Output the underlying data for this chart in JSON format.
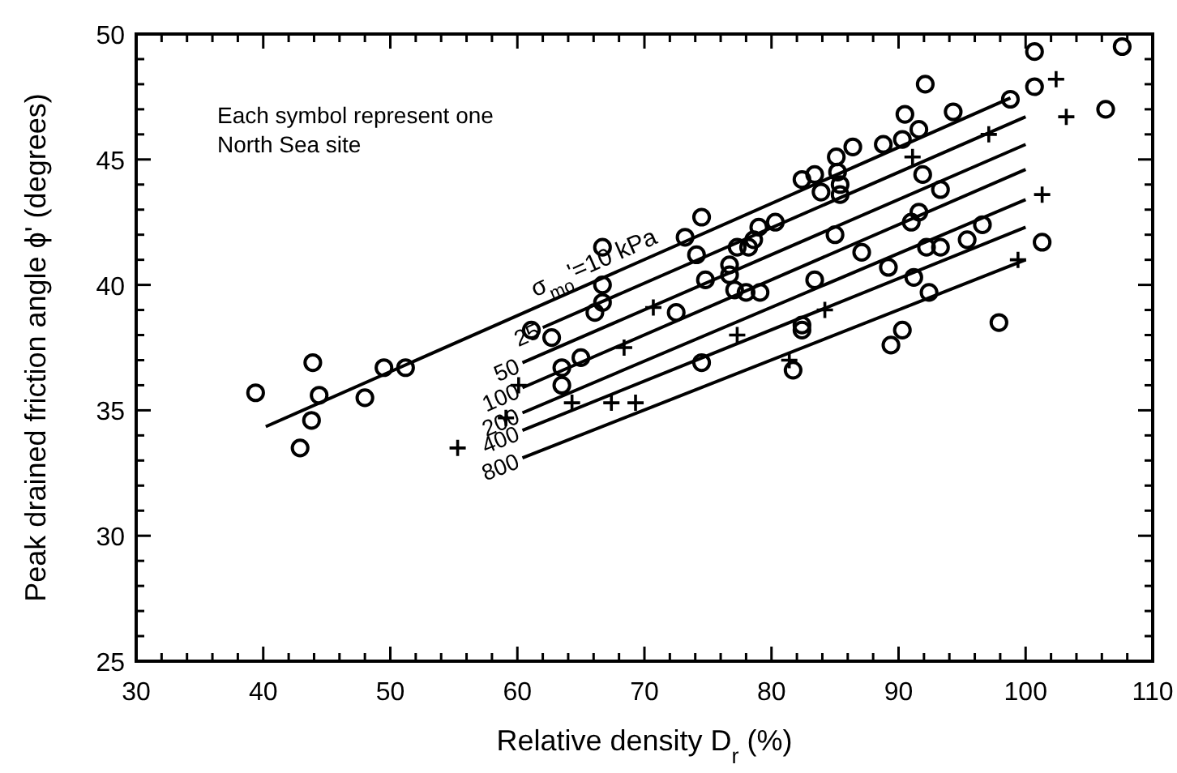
{
  "chart_data": {
    "type": "scatter",
    "xlabel": "Relative density D$_{r}$ (%)",
    "ylabel": "Peak drained friction angle ϕ' (degrees)",
    "xlim": [
      30,
      110
    ],
    "ylim": [
      25,
      50
    ],
    "xticks": [
      30,
      {
        "value": 32,
        "label": null
      },
      {
        "value": 34,
        "label": null
      },
      {
        "value": 36,
        "label": null
      },
      {
        "value": 38,
        "label": null
      },
      40,
      {
        "value": 42,
        "label": null
      },
      {
        "value": 44,
        "label": null
      },
      {
        "value": 46,
        "label": null
      },
      {
        "value": 48,
        "label": null
      },
      50,
      {
        "value": 52,
        "label": null
      },
      {
        "value": 54,
        "label": null
      },
      {
        "value": 56,
        "label": null
      },
      {
        "value": 58,
        "label": null
      },
      60,
      {
        "value": 62,
        "label": null
      },
      {
        "value": 64,
        "label": null
      },
      {
        "value": 66,
        "label": null
      },
      {
        "value": 68,
        "label": null
      },
      70,
      {
        "value": 72,
        "label": null
      },
      {
        "value": 74,
        "label": null
      },
      {
        "value": 76,
        "label": null
      },
      {
        "value": 78,
        "label": null
      },
      80,
      {
        "value": 82,
        "label": null
      },
      {
        "value": 84,
        "label": null
      },
      {
        "value": 86,
        "label": null
      },
      {
        "value": 88,
        "label": null
      },
      90,
      {
        "value": 92,
        "label": null
      },
      {
        "value": 94,
        "label": null
      },
      {
        "value": 96,
        "label": null
      },
      {
        "value": 98,
        "label": null
      },
      100,
      {
        "value": 102,
        "label": null
      },
      {
        "value": 104,
        "label": null
      },
      {
        "value": 106,
        "label": null
      },
      {
        "value": 108,
        "label": null
      },
      110
    ],
    "yticks": [
      25,
      {
        "value": 26,
        "label": null
      },
      {
        "value": 27,
        "label": null
      },
      {
        "value": 28,
        "label": null
      },
      {
        "value": 29,
        "label": null
      },
      30,
      {
        "value": 31,
        "label": null
      },
      {
        "value": 32,
        "label": null
      },
      {
        "value": 33,
        "label": null
      },
      {
        "value": 34,
        "label": null
      },
      35,
      {
        "value": 36,
        "label": null
      },
      {
        "value": 37,
        "label": null
      },
      {
        "value": 38,
        "label": null
      },
      {
        "value": 39,
        "label": null
      },
      40,
      {
        "value": 41,
        "label": null
      },
      {
        "value": 42,
        "label": null
      },
      {
        "value": 43,
        "label": null
      },
      {
        "value": 44,
        "label": null
      },
      45,
      {
        "value": 46,
        "label": null
      },
      {
        "value": 47,
        "label": null
      },
      {
        "value": 48,
        "label": null
      },
      {
        "value": 49,
        "label": null
      },
      50
    ],
    "grid": false,
    "annotations": [
      "Each symbol represent one\nNorth Sea site"
    ],
    "series": [
      {
        "marker": "circle",
        "color": "#000000",
        "x": [
          39.4,
          42.9,
          43.8,
          43.9,
          44.4,
          48.0,
          49.5,
          51.2,
          61.1,
          62.7,
          63.5,
          63.5,
          65.0,
          66.1,
          66.7,
          66.7,
          66.7,
          72.5,
          73.2,
          74.1,
          74.5,
          74.5,
          74.8,
          76.7,
          76.7,
          77.1,
          77.3,
          78.0,
          78.2,
          78.6,
          79.0,
          79.1,
          80.3,
          81.7,
          82.4,
          82.4,
          82.4,
          83.4,
          83.4,
          83.9,
          85.0,
          85.1,
          85.2,
          85.4,
          85.4,
          86.4,
          87.1,
          88.8,
          89.2,
          89.4,
          90.3,
          90.3,
          90.5,
          91.0,
          91.2,
          91.6,
          91.6,
          91.9,
          92.1,
          92.2,
          92.4,
          93.3,
          93.3,
          94.3,
          95.4,
          96.6,
          97.9,
          98.8,
          100.7,
          100.7,
          101.3,
          106.3,
          107.6
        ],
        "values": [
          35.7,
          33.5,
          34.6,
          36.9,
          35.6,
          35.5,
          36.7,
          36.7,
          38.2,
          37.9,
          36.7,
          36.0,
          37.1,
          38.9,
          39.3,
          40.0,
          41.5,
          38.9,
          41.9,
          41.2,
          42.7,
          36.9,
          40.2,
          40.8,
          40.4,
          39.8,
          41.5,
          39.7,
          41.5,
          41.8,
          42.3,
          39.7,
          42.5,
          36.6,
          38.4,
          38.2,
          44.2,
          44.4,
          40.2,
          43.7,
          42.0,
          45.1,
          44.5,
          44.0,
          43.6,
          45.5,
          41.3,
          45.6,
          40.7,
          37.6,
          45.8,
          38.2,
          46.8,
          42.5,
          40.3,
          46.2,
          42.9,
          44.4,
          48.0,
          41.5,
          39.7,
          43.8,
          41.5,
          46.9,
          41.8,
          42.4,
          38.5,
          47.4,
          47.9,
          49.3,
          41.7,
          47.0,
          49.5
        ]
      },
      {
        "marker": "cross",
        "color": "#000000",
        "x": [
          55.3,
          59.1,
          60.1,
          64.3,
          67.4,
          68.4,
          69.3,
          70.7,
          77.3,
          81.4,
          84.2,
          91.1,
          97.1,
          99.4,
          101.3,
          102.4,
          103.2
        ],
        "values": [
          33.5,
          34.7,
          36.0,
          35.3,
          35.3,
          37.5,
          35.3,
          39.1,
          38.0,
          37.0,
          39.0,
          45.1,
          46.0,
          41.0,
          43.6,
          48.2,
          46.7
        ]
      },
      {
        "type": "line",
        "name": "σ$_{mo}$'=10 kPa",
        "color": "#000000",
        "line_style": "solid",
        "x": [
          40.2,
          98.8
        ],
        "values": [
          34.35,
          47.45
        ]
      },
      {
        "type": "line",
        "name": "25",
        "color": "#000000",
        "line_style": "solid",
        "x": [
          62,
          100
        ],
        "values": [
          38.3,
          46.7
        ]
      },
      {
        "type": "line",
        "name": "50",
        "color": "#000000",
        "line_style": "solid",
        "x": [
          60.4,
          100
        ],
        "values": [
          36.9,
          45.6
        ]
      },
      {
        "type": "line",
        "name": "100",
        "color": "#000000",
        "line_style": "solid",
        "x": [
          60.4,
          100
        ],
        "values": [
          35.9,
          44.6
        ]
      },
      {
        "type": "line",
        "name": "200",
        "color": "#000000",
        "line_style": "solid",
        "x": [
          60.4,
          100
        ],
        "values": [
          34.9,
          43.4
        ]
      },
      {
        "type": "line",
        "name": "400",
        "color": "#000000",
        "line_style": "solid",
        "x": [
          60.4,
          100
        ],
        "values": [
          34.2,
          42.3
        ]
      },
      {
        "type": "line",
        "name": "800",
        "color": "#000000",
        "line_style": "solid",
        "x": [
          60.4,
          100
        ],
        "values": [
          33.1,
          41.0
        ]
      }
    ]
  }
}
